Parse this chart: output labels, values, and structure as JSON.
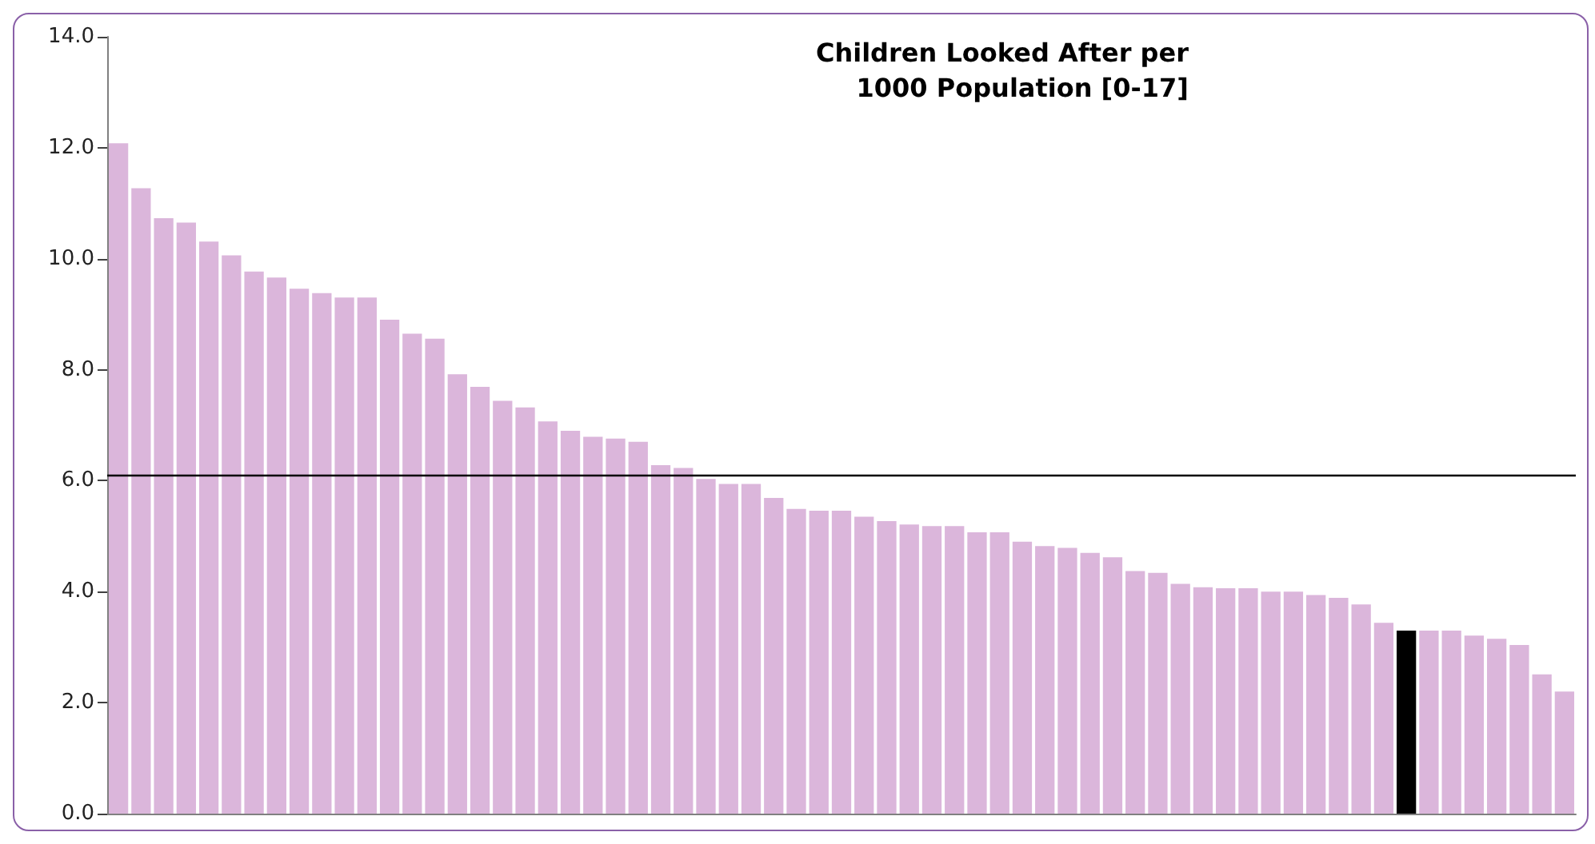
{
  "chart_data": {
    "type": "bar",
    "title": "Children Looked After per\n1000 Population [0-17]",
    "categories": [
      null,
      null,
      null,
      null,
      null,
      null,
      null,
      null,
      null,
      null,
      null,
      null,
      null,
      null,
      null,
      null,
      null,
      null,
      null,
      null,
      null,
      null,
      null,
      null,
      null,
      null,
      null,
      null,
      null,
      null,
      null,
      null,
      null,
      null,
      null,
      null,
      null,
      null,
      null,
      null,
      null,
      null,
      null,
      null,
      null,
      null,
      null,
      null,
      null,
      null,
      null,
      null,
      null,
      null,
      null,
      null,
      null,
      null,
      null,
      null,
      null,
      null,
      null,
      null,
      null
    ],
    "values": [
      12.08,
      11.27,
      10.73,
      10.65,
      10.31,
      10.06,
      9.77,
      9.66,
      9.46,
      9.38,
      9.3,
      9.3,
      8.9,
      8.65,
      8.56,
      7.92,
      7.69,
      7.44,
      7.32,
      7.07,
      6.9,
      6.79,
      6.76,
      6.7,
      6.28,
      6.23,
      6.03,
      5.94,
      5.94,
      5.69,
      5.49,
      5.46,
      5.46,
      5.35,
      5.27,
      5.21,
      5.18,
      5.18,
      5.07,
      5.07,
      4.9,
      4.82,
      4.79,
      4.7,
      4.62,
      4.37,
      4.34,
      4.14,
      4.08,
      4.06,
      4.06,
      4.0,
      4.0,
      3.94,
      3.89,
      3.77,
      3.44,
      3.3,
      3.3,
      3.3,
      3.21,
      3.15,
      3.04,
      2.51,
      2.2
    ],
    "colors": [
      "#dbb6db",
      "#dbb6db",
      "#dbb6db",
      "#dbb6db",
      "#dbb6db",
      "#dbb6db",
      "#dbb6db",
      "#dbb6db",
      "#dbb6db",
      "#dbb6db",
      "#dbb6db",
      "#dbb6db",
      "#dbb6db",
      "#dbb6db",
      "#dbb6db",
      "#dbb6db",
      "#dbb6db",
      "#dbb6db",
      "#dbb6db",
      "#dbb6db",
      "#dbb6db",
      "#dbb6db",
      "#dbb6db",
      "#dbb6db",
      "#dbb6db",
      "#dbb6db",
      "#dbb6db",
      "#dbb6db",
      "#dbb6db",
      "#dbb6db",
      "#dbb6db",
      "#dbb6db",
      "#dbb6db",
      "#dbb6db",
      "#dbb6db",
      "#dbb6db",
      "#dbb6db",
      "#dbb6db",
      "#dbb6db",
      "#dbb6db",
      "#dbb6db",
      "#dbb6db",
      "#dbb6db",
      "#dbb6db",
      "#dbb6db",
      "#dbb6db",
      "#dbb6db",
      "#dbb6db",
      "#dbb6db",
      "#dbb6db",
      "#dbb6db",
      "#dbb6db",
      "#dbb6db",
      "#dbb6db",
      "#dbb6db",
      "#dbb6db",
      "#dbb6db",
      "#000000",
      "#dbb6db",
      "#dbb6db",
      "#dbb6db",
      "#dbb6db",
      "#dbb6db",
      "#dbb6db",
      "#dbb6db"
    ],
    "ylim": [
      0,
      14
    ],
    "yticks": [
      {
        "value": 0,
        "label": "0.0"
      },
      {
        "value": 2,
        "label": "2.0"
      },
      {
        "value": 4,
        "label": "4.0"
      },
      {
        "value": 6,
        "label": "6.0"
      },
      {
        "value": 8,
        "label": "8.0"
      },
      {
        "value": 10,
        "label": "10.0"
      },
      {
        "value": 12,
        "label": "12.0"
      },
      {
        "value": 14,
        "label": "14.0"
      }
    ],
    "ref_lines": [
      {
        "axis": "y",
        "value": 6.1,
        "color": "#000000"
      }
    ],
    "grid": false
  }
}
